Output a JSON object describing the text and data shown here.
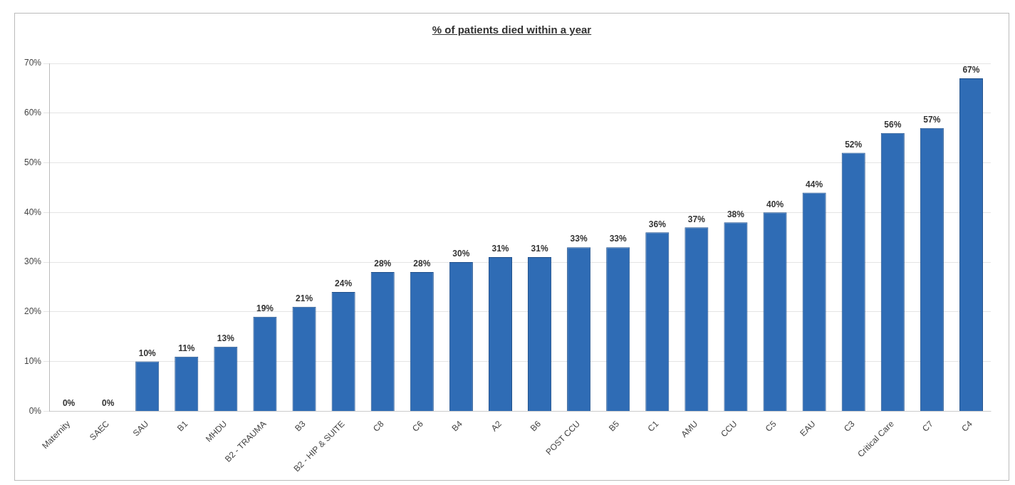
{
  "chart_data": {
    "type": "bar",
    "title": "% of patients died within a year",
    "categories": [
      "Maternity",
      "SAEC",
      "SAU",
      "B1",
      "MHDU",
      "B2 - TRAUMA",
      "B3",
      "B2 - HIP & SUITE",
      "C8",
      "C6",
      "B4",
      "A2",
      "B6",
      "POST CCU",
      "B5",
      "C1",
      "AMU",
      "CCU",
      "C5",
      "EAU",
      "C3",
      "Critical Care",
      "C7",
      "C4"
    ],
    "values": [
      0,
      0,
      10,
      11,
      13,
      19,
      21,
      24,
      28,
      28,
      30,
      31,
      31,
      33,
      33,
      36,
      37,
      38,
      40,
      44,
      52,
      56,
      57,
      67
    ],
    "value_labels": [
      "0%",
      "0%",
      "10%",
      "11%",
      "13%",
      "19%",
      "21%",
      "24%",
      "28%",
      "28%",
      "30%",
      "31%",
      "31%",
      "33%",
      "33%",
      "36%",
      "37%",
      "38%",
      "40%",
      "44%",
      "52%",
      "56%",
      "57%",
      "67%"
    ],
    "color": "#2f6cb5",
    "ylim": [
      0,
      70
    ],
    "yticks": [
      {
        "value": 0,
        "label": "0%"
      },
      {
        "value": 10,
        "label": "10%"
      },
      {
        "value": 20,
        "label": "20%"
      },
      {
        "value": 30,
        "label": "30%"
      },
      {
        "value": 40,
        "label": "40%"
      },
      {
        "value": 50,
        "label": "50%"
      },
      {
        "value": 60,
        "label": "60%"
      },
      {
        "value": 70,
        "label": "70%"
      }
    ],
    "grid": "y"
  }
}
